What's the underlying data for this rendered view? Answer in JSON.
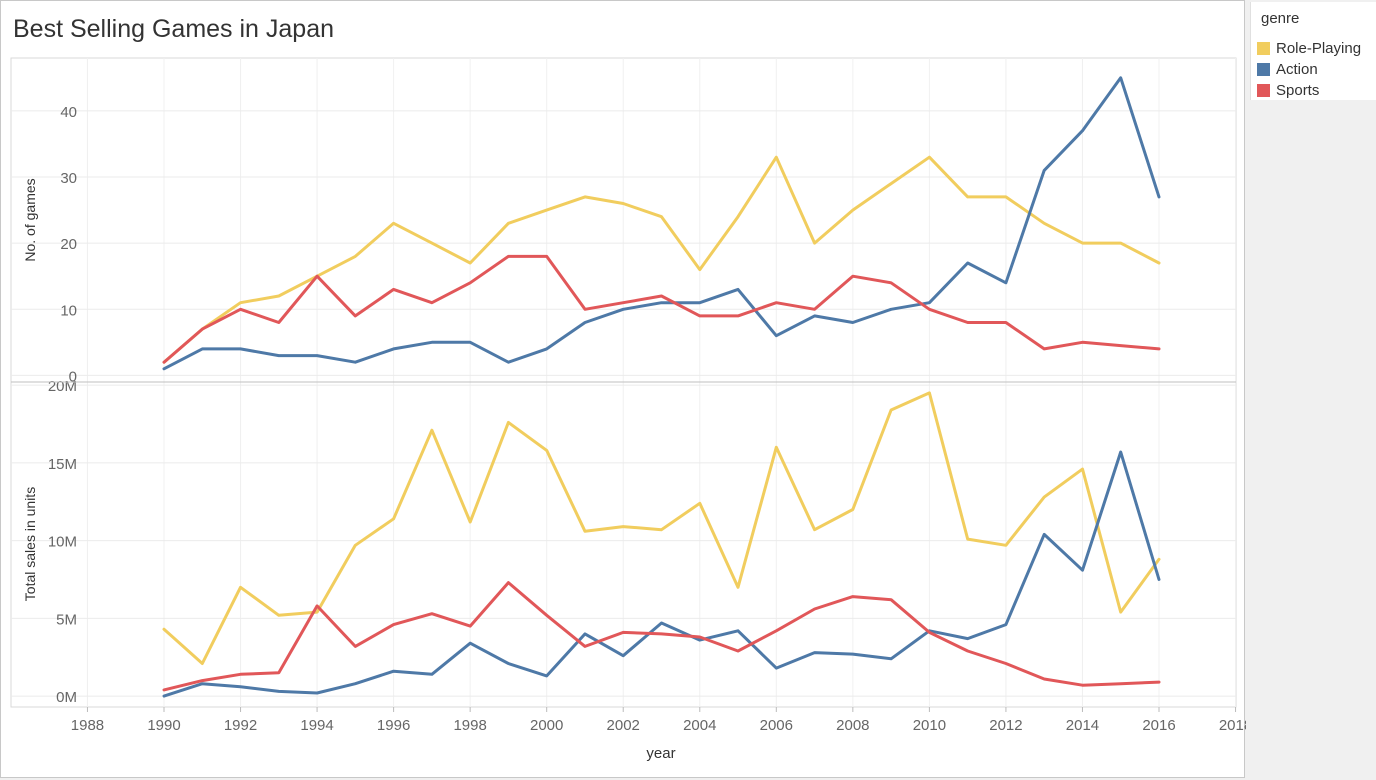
{
  "title": "Best Selling Games in Japan",
  "legend": {
    "title": "genre",
    "items": [
      {
        "label": "Role-Playing",
        "color": "#f1cd5e"
      },
      {
        "label": "Action",
        "color": "#4e79a7"
      },
      {
        "label": "Sports",
        "color": "#e15759"
      }
    ]
  },
  "chart_data": [
    {
      "type": "line",
      "ylabel": "No. of games",
      "xlabel": "",
      "ylim": [
        -1,
        48
      ],
      "yticks": [
        0,
        10,
        20,
        30,
        40
      ],
      "ytick_labels": [
        "0",
        "10",
        "20",
        "30",
        "40"
      ],
      "grid": true,
      "x": [
        1990,
        1991,
        1992,
        1993,
        1994,
        1995,
        1996,
        1997,
        1998,
        1999,
        2000,
        2001,
        2002,
        2003,
        2004,
        2005,
        2006,
        2007,
        2008,
        2009,
        2010,
        2011,
        2012,
        2013,
        2014,
        2015,
        2016
      ],
      "series": [
        {
          "name": "Role-Playing",
          "color": "#f1cd5e",
          "values": [
            2,
            7,
            11,
            12,
            15,
            18,
            23,
            20,
            17,
            23,
            25,
            27,
            26,
            24,
            16,
            24,
            33,
            20,
            25,
            29,
            33,
            27,
            27,
            23,
            20,
            20,
            17
          ]
        },
        {
          "name": "Action",
          "color": "#4e79a7",
          "values": [
            1,
            4,
            4,
            3,
            3,
            2,
            4,
            5,
            5,
            2,
            4,
            8,
            10,
            11,
            11,
            13,
            6,
            9,
            8,
            10,
            11,
            17,
            14,
            31,
            37,
            45,
            27
          ]
        },
        {
          "name": "Sports",
          "color": "#e15759",
          "values": [
            2,
            7,
            10,
            8,
            15,
            9,
            13,
            11,
            14,
            18,
            18,
            10,
            11,
            12,
            9,
            9,
            11,
            10,
            15,
            14,
            10,
            8,
            8,
            4,
            5,
            4.5,
            4
          ]
        }
      ]
    },
    {
      "type": "line",
      "ylabel": "Total sales in units",
      "xlabel": "year",
      "xlim": [
        1987,
        2019
      ],
      "xticks": [
        1988,
        1990,
        1992,
        1994,
        1996,
        1998,
        2000,
        2002,
        2004,
        2006,
        2008,
        2010,
        2012,
        2014,
        2016,
        2018
      ],
      "xtick_labels": [
        "1988",
        "1990",
        "1992",
        "1994",
        "1996",
        "1998",
        "2000",
        "2002",
        "2004",
        "2006",
        "2008",
        "2010",
        "2012",
        "2014",
        "2016",
        "2018"
      ],
      "ylim": [
        -0.7,
        20.2
      ],
      "yticks": [
        0,
        5,
        10,
        15,
        20
      ],
      "ytick_labels": [
        "0M",
        "5M",
        "10M",
        "15M",
        "20M"
      ],
      "y_units": "millions of units",
      "grid": true,
      "x": [
        1990,
        1991,
        1992,
        1993,
        1994,
        1995,
        1996,
        1997,
        1998,
        1999,
        2000,
        2001,
        2002,
        2003,
        2004,
        2005,
        2006,
        2007,
        2008,
        2009,
        2010,
        2011,
        2012,
        2013,
        2014,
        2015,
        2016
      ],
      "series": [
        {
          "name": "Role-Playing",
          "color": "#f1cd5e",
          "values": [
            4.3,
            2.1,
            7,
            5.2,
            5.4,
            9.7,
            11.4,
            17.1,
            11.2,
            17.6,
            15.8,
            10.6,
            10.9,
            10.7,
            12.4,
            7,
            16,
            10.7,
            12,
            18.4,
            19.5,
            10.1,
            9.7,
            12.8,
            14.6,
            5.4,
            8.8
          ]
        },
        {
          "name": "Action",
          "color": "#4e79a7",
          "values": [
            0,
            0.8,
            0.6,
            0.3,
            0.2,
            0.8,
            1.6,
            1.4,
            3.4,
            2.1,
            1.3,
            4,
            2.6,
            4.7,
            3.6,
            4.2,
            1.8,
            2.8,
            2.7,
            2.4,
            4.2,
            3.7,
            4.6,
            10.4,
            8.1,
            15.7,
            7.5
          ]
        },
        {
          "name": "Sports",
          "color": "#e15759",
          "values": [
            0.4,
            1,
            1.4,
            1.5,
            5.8,
            3.2,
            4.6,
            5.3,
            4.5,
            7.3,
            5.2,
            3.2,
            4.1,
            4,
            3.8,
            2.9,
            4.2,
            5.6,
            6.4,
            6.2,
            4.1,
            2.9,
            2.1,
            1.1,
            0.7,
            0.8,
            0.9
          ]
        }
      ]
    }
  ]
}
